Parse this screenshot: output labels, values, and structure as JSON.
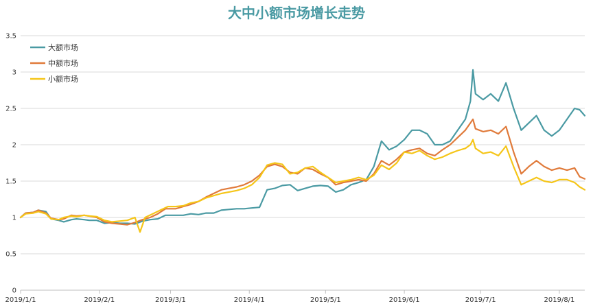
{
  "chart_data": {
    "type": "line",
    "title": "大中小额市场增长走势",
    "title_color": "#4a9aa3",
    "xlabel": "",
    "ylabel": "",
    "ylim": [
      0,
      3.5
    ],
    "xlim": [
      "2019-01-01",
      "2019-08-11"
    ],
    "grid": true,
    "grid_color": "#d9d9d9",
    "legend_position": "top-left",
    "y_ticks": [
      "0",
      "0.5",
      "1",
      "1.5",
      "2",
      "2.5",
      "3",
      "3.5"
    ],
    "x_ticks": [
      {
        "label": "2019/1/1",
        "date": "2019-01-01"
      },
      {
        "label": "2019/2/1",
        "date": "2019-02-01"
      },
      {
        "label": "2019/3/1",
        "date": "2019-03-01"
      },
      {
        "label": "2019/4/1",
        "date": "2019-04-01"
      },
      {
        "label": "2019/5/1",
        "date": "2019-05-01"
      },
      {
        "label": "2019/6/1",
        "date": "2019-06-01"
      },
      {
        "label": "2019/7/1",
        "date": "2019-07-01"
      },
      {
        "label": "2019/8/1",
        "date": "2019-08-01"
      }
    ],
    "series": [
      {
        "name": "大额市场",
        "color": "#4a9aa3",
        "points": [
          [
            "2019-01-01",
            1.0
          ],
          [
            "2019-01-03",
            1.06
          ],
          [
            "2019-01-06",
            1.07
          ],
          [
            "2019-01-08",
            1.1
          ],
          [
            "2019-01-11",
            1.08
          ],
          [
            "2019-01-13",
            0.98
          ],
          [
            "2019-01-16",
            0.96
          ],
          [
            "2019-01-18",
            0.94
          ],
          [
            "2019-01-21",
            0.97
          ],
          [
            "2019-01-23",
            0.98
          ],
          [
            "2019-01-26",
            0.97
          ],
          [
            "2019-01-28",
            0.96
          ],
          [
            "2019-01-31",
            0.96
          ],
          [
            "2019-02-03",
            0.92
          ],
          [
            "2019-02-06",
            0.93
          ],
          [
            "2019-02-09",
            0.92
          ],
          [
            "2019-02-12",
            0.92
          ],
          [
            "2019-02-15",
            0.91
          ],
          [
            "2019-02-18",
            0.95
          ],
          [
            "2019-02-21",
            0.97
          ],
          [
            "2019-02-24",
            0.98
          ],
          [
            "2019-02-27",
            1.03
          ],
          [
            "2019-03-03",
            1.03
          ],
          [
            "2019-03-06",
            1.03
          ],
          [
            "2019-03-09",
            1.05
          ],
          [
            "2019-03-12",
            1.04
          ],
          [
            "2019-03-15",
            1.06
          ],
          [
            "2019-03-18",
            1.06
          ],
          [
            "2019-03-21",
            1.1
          ],
          [
            "2019-03-24",
            1.11
          ],
          [
            "2019-03-27",
            1.12
          ],
          [
            "2019-03-30",
            1.12
          ],
          [
            "2019-04-02",
            1.13
          ],
          [
            "2019-04-05",
            1.14
          ],
          [
            "2019-04-08",
            1.38
          ],
          [
            "2019-04-11",
            1.4
          ],
          [
            "2019-04-14",
            1.44
          ],
          [
            "2019-04-17",
            1.45
          ],
          [
            "2019-04-20",
            1.37
          ],
          [
            "2019-04-23",
            1.4
          ],
          [
            "2019-04-26",
            1.43
          ],
          [
            "2019-04-29",
            1.44
          ],
          [
            "2019-05-02",
            1.43
          ],
          [
            "2019-05-05",
            1.35
          ],
          [
            "2019-05-08",
            1.38
          ],
          [
            "2019-05-11",
            1.45
          ],
          [
            "2019-05-14",
            1.48
          ],
          [
            "2019-05-17",
            1.52
          ],
          [
            "2019-05-20",
            1.7
          ],
          [
            "2019-05-23",
            2.05
          ],
          [
            "2019-05-26",
            1.93
          ],
          [
            "2019-05-29",
            1.98
          ],
          [
            "2019-06-01",
            2.07
          ],
          [
            "2019-06-04",
            2.2
          ],
          [
            "2019-06-07",
            2.2
          ],
          [
            "2019-06-10",
            2.15
          ],
          [
            "2019-06-13",
            2.0
          ],
          [
            "2019-06-16",
            2.0
          ],
          [
            "2019-06-19",
            2.05
          ],
          [
            "2019-06-22",
            2.2
          ],
          [
            "2019-06-25",
            2.35
          ],
          [
            "2019-06-27",
            2.6
          ],
          [
            "2019-06-28",
            3.03
          ],
          [
            "2019-06-29",
            2.7
          ],
          [
            "2019-07-02",
            2.62
          ],
          [
            "2019-07-05",
            2.7
          ],
          [
            "2019-07-08",
            2.6
          ],
          [
            "2019-07-11",
            2.85
          ],
          [
            "2019-07-14",
            2.5
          ],
          [
            "2019-07-17",
            2.2
          ],
          [
            "2019-07-20",
            2.3
          ],
          [
            "2019-07-23",
            2.4
          ],
          [
            "2019-07-26",
            2.2
          ],
          [
            "2019-07-29",
            2.12
          ],
          [
            "2019-08-01",
            2.2
          ],
          [
            "2019-08-04",
            2.35
          ],
          [
            "2019-08-07",
            2.5
          ],
          [
            "2019-08-09",
            2.48
          ],
          [
            "2019-08-11",
            2.4
          ]
        ]
      },
      {
        "name": "中额市场",
        "color": "#e07a3a",
        "points": [
          [
            "2019-01-01",
            1.0
          ],
          [
            "2019-01-03",
            1.06
          ],
          [
            "2019-01-06",
            1.07
          ],
          [
            "2019-01-08",
            1.1
          ],
          [
            "2019-01-11",
            1.06
          ],
          [
            "2019-01-13",
            0.99
          ],
          [
            "2019-01-16",
            0.97
          ],
          [
            "2019-01-18",
            0.98
          ],
          [
            "2019-01-21",
            1.03
          ],
          [
            "2019-01-23",
            1.02
          ],
          [
            "2019-01-26",
            1.03
          ],
          [
            "2019-01-28",
            1.02
          ],
          [
            "2019-01-31",
            1.0
          ],
          [
            "2019-02-03",
            0.94
          ],
          [
            "2019-02-06",
            0.92
          ],
          [
            "2019-02-09",
            0.91
          ],
          [
            "2019-02-12",
            0.9
          ],
          [
            "2019-02-15",
            0.93
          ],
          [
            "2019-02-18",
            0.97
          ],
          [
            "2019-02-21",
            1.0
          ],
          [
            "2019-02-24",
            1.05
          ],
          [
            "2019-02-27",
            1.12
          ],
          [
            "2019-03-03",
            1.12
          ],
          [
            "2019-03-06",
            1.15
          ],
          [
            "2019-03-09",
            1.18
          ],
          [
            "2019-03-12",
            1.22
          ],
          [
            "2019-03-15",
            1.28
          ],
          [
            "2019-03-18",
            1.33
          ],
          [
            "2019-03-21",
            1.38
          ],
          [
            "2019-03-24",
            1.4
          ],
          [
            "2019-03-27",
            1.42
          ],
          [
            "2019-03-30",
            1.45
          ],
          [
            "2019-04-02",
            1.5
          ],
          [
            "2019-04-05",
            1.58
          ],
          [
            "2019-04-08",
            1.7
          ],
          [
            "2019-04-11",
            1.73
          ],
          [
            "2019-04-14",
            1.7
          ],
          [
            "2019-04-17",
            1.62
          ],
          [
            "2019-04-20",
            1.6
          ],
          [
            "2019-04-23",
            1.68
          ],
          [
            "2019-04-26",
            1.66
          ],
          [
            "2019-04-29",
            1.6
          ],
          [
            "2019-05-02",
            1.55
          ],
          [
            "2019-05-05",
            1.45
          ],
          [
            "2019-05-08",
            1.48
          ],
          [
            "2019-05-11",
            1.5
          ],
          [
            "2019-05-14",
            1.52
          ],
          [
            "2019-05-17",
            1.5
          ],
          [
            "2019-05-20",
            1.6
          ],
          [
            "2019-05-23",
            1.78
          ],
          [
            "2019-05-26",
            1.72
          ],
          [
            "2019-05-29",
            1.8
          ],
          [
            "2019-06-01",
            1.9
          ],
          [
            "2019-06-04",
            1.93
          ],
          [
            "2019-06-07",
            1.95
          ],
          [
            "2019-06-10",
            1.88
          ],
          [
            "2019-06-13",
            1.85
          ],
          [
            "2019-06-16",
            1.93
          ],
          [
            "2019-06-19",
            2.0
          ],
          [
            "2019-06-22",
            2.1
          ],
          [
            "2019-06-25",
            2.2
          ],
          [
            "2019-06-27",
            2.3
          ],
          [
            "2019-06-28",
            2.35
          ],
          [
            "2019-06-29",
            2.22
          ],
          [
            "2019-07-02",
            2.18
          ],
          [
            "2019-07-05",
            2.2
          ],
          [
            "2019-07-08",
            2.15
          ],
          [
            "2019-07-11",
            2.25
          ],
          [
            "2019-07-14",
            1.9
          ],
          [
            "2019-07-17",
            1.6
          ],
          [
            "2019-07-20",
            1.7
          ],
          [
            "2019-07-23",
            1.78
          ],
          [
            "2019-07-26",
            1.7
          ],
          [
            "2019-07-29",
            1.65
          ],
          [
            "2019-08-01",
            1.68
          ],
          [
            "2019-08-04",
            1.65
          ],
          [
            "2019-08-07",
            1.68
          ],
          [
            "2019-08-09",
            1.56
          ],
          [
            "2019-08-11",
            1.53
          ]
        ]
      },
      {
        "name": "小额市场",
        "color": "#f5c518",
        "points": [
          [
            "2019-01-01",
            1.0
          ],
          [
            "2019-01-03",
            1.05
          ],
          [
            "2019-01-06",
            1.06
          ],
          [
            "2019-01-08",
            1.08
          ],
          [
            "2019-01-11",
            1.05
          ],
          [
            "2019-01-13",
            0.98
          ],
          [
            "2019-01-16",
            0.97
          ],
          [
            "2019-01-18",
            1.0
          ],
          [
            "2019-01-21",
            1.02
          ],
          [
            "2019-01-23",
            1.01
          ],
          [
            "2019-01-26",
            1.03
          ],
          [
            "2019-01-28",
            1.02
          ],
          [
            "2019-01-31",
            1.01
          ],
          [
            "2019-02-03",
            0.96
          ],
          [
            "2019-02-06",
            0.94
          ],
          [
            "2019-02-09",
            0.95
          ],
          [
            "2019-02-12",
            0.96
          ],
          [
            "2019-02-15",
            1.0
          ],
          [
            "2019-02-17",
            0.8
          ],
          [
            "2019-02-19",
            1.0
          ],
          [
            "2019-02-22",
            1.05
          ],
          [
            "2019-02-25",
            1.1
          ],
          [
            "2019-02-28",
            1.15
          ],
          [
            "2019-03-03",
            1.15
          ],
          [
            "2019-03-06",
            1.16
          ],
          [
            "2019-03-09",
            1.2
          ],
          [
            "2019-03-12",
            1.22
          ],
          [
            "2019-03-15",
            1.27
          ],
          [
            "2019-03-18",
            1.3
          ],
          [
            "2019-03-21",
            1.33
          ],
          [
            "2019-03-24",
            1.35
          ],
          [
            "2019-03-27",
            1.37
          ],
          [
            "2019-03-30",
            1.4
          ],
          [
            "2019-04-02",
            1.45
          ],
          [
            "2019-04-05",
            1.55
          ],
          [
            "2019-04-08",
            1.72
          ],
          [
            "2019-04-11",
            1.75
          ],
          [
            "2019-04-14",
            1.73
          ],
          [
            "2019-04-17",
            1.6
          ],
          [
            "2019-04-20",
            1.62
          ],
          [
            "2019-04-23",
            1.68
          ],
          [
            "2019-04-26",
            1.7
          ],
          [
            "2019-04-29",
            1.62
          ],
          [
            "2019-05-02",
            1.55
          ],
          [
            "2019-05-05",
            1.48
          ],
          [
            "2019-05-08",
            1.5
          ],
          [
            "2019-05-11",
            1.52
          ],
          [
            "2019-05-14",
            1.55
          ],
          [
            "2019-05-17",
            1.52
          ],
          [
            "2019-05-20",
            1.58
          ],
          [
            "2019-05-23",
            1.72
          ],
          [
            "2019-05-26",
            1.66
          ],
          [
            "2019-05-29",
            1.75
          ],
          [
            "2019-06-01",
            1.9
          ],
          [
            "2019-06-04",
            1.88
          ],
          [
            "2019-06-07",
            1.92
          ],
          [
            "2019-06-10",
            1.85
          ],
          [
            "2019-06-13",
            1.8
          ],
          [
            "2019-06-16",
            1.83
          ],
          [
            "2019-06-19",
            1.88
          ],
          [
            "2019-06-22",
            1.92
          ],
          [
            "2019-06-25",
            1.95
          ],
          [
            "2019-06-27",
            2.0
          ],
          [
            "2019-06-28",
            2.07
          ],
          [
            "2019-06-29",
            1.95
          ],
          [
            "2019-07-02",
            1.88
          ],
          [
            "2019-07-05",
            1.9
          ],
          [
            "2019-07-08",
            1.85
          ],
          [
            "2019-07-11",
            1.98
          ],
          [
            "2019-07-14",
            1.7
          ],
          [
            "2019-07-17",
            1.45
          ],
          [
            "2019-07-20",
            1.5
          ],
          [
            "2019-07-23",
            1.55
          ],
          [
            "2019-07-26",
            1.5
          ],
          [
            "2019-07-29",
            1.48
          ],
          [
            "2019-08-01",
            1.52
          ],
          [
            "2019-08-04",
            1.52
          ],
          [
            "2019-08-07",
            1.48
          ],
          [
            "2019-08-09",
            1.42
          ],
          [
            "2019-08-11",
            1.38
          ]
        ]
      }
    ]
  }
}
